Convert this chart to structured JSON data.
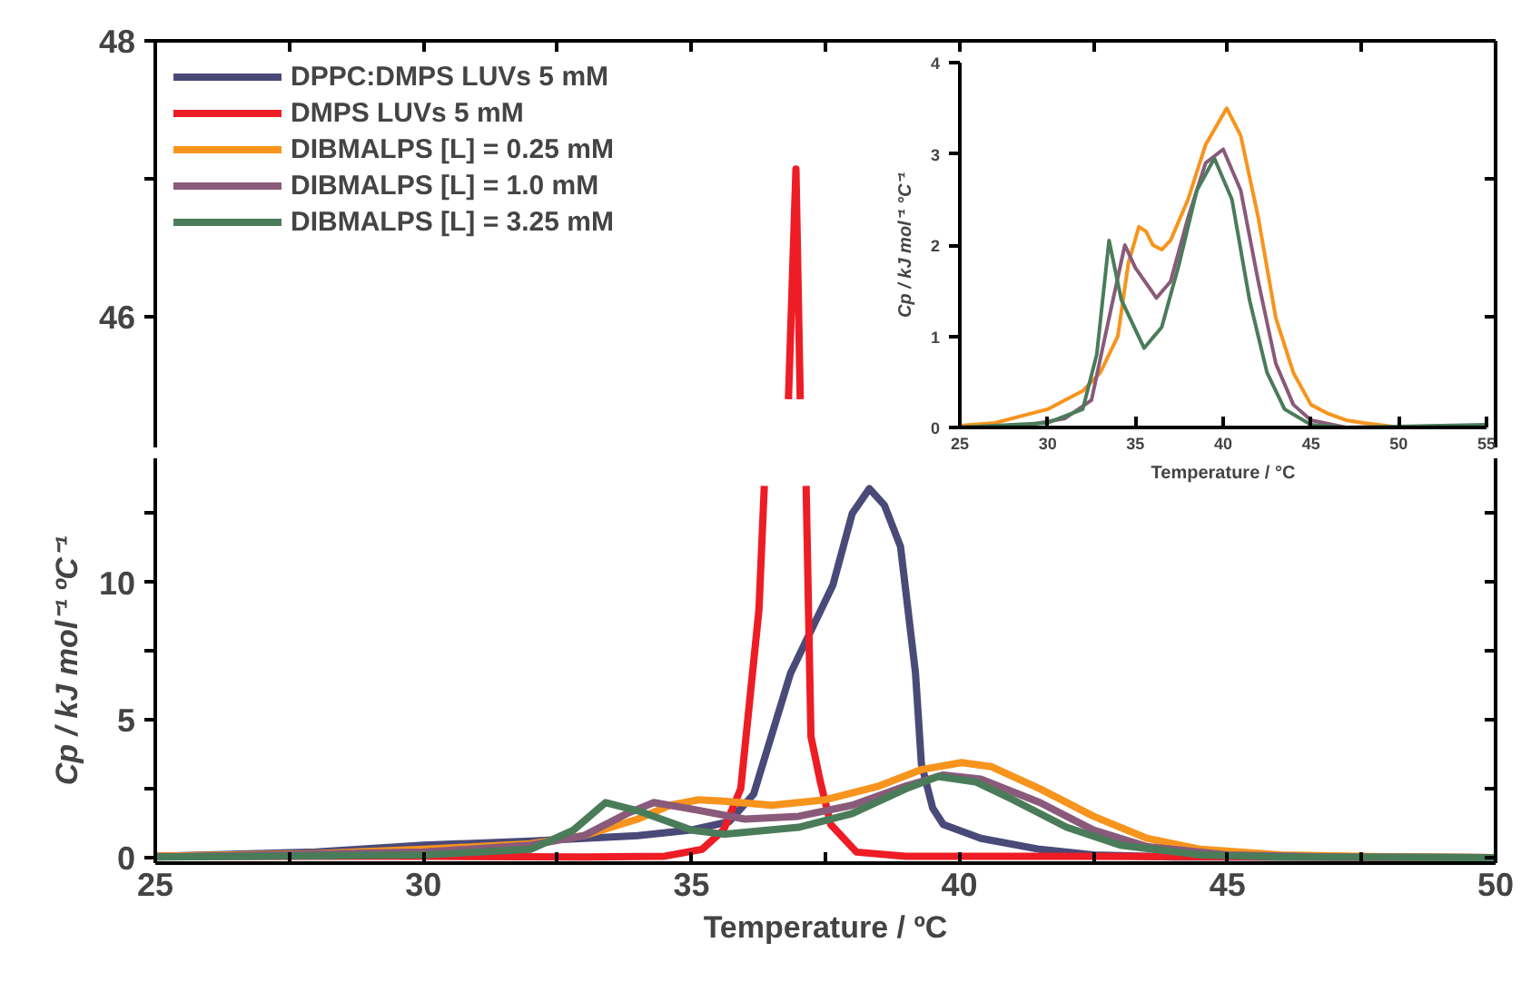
{
  "chart_data": [
    {
      "type": "line",
      "xlim": [
        25,
        50
      ],
      "xticks": [
        25,
        {
          "value": 27.5,
          "label": null
        },
        30,
        {
          "value": 32.5,
          "label": null
        },
        35,
        {
          "value": 37.5,
          "label": null
        },
        40,
        {
          "value": 42.5,
          "label": null
        },
        45,
        {
          "value": 47.5,
          "label": null
        },
        50
      ],
      "ylim": [
        45.05,
        48
      ],
      "yticks": [
        46,
        {
          "value": 47,
          "label": null
        },
        48
      ],
      "tick_labels": "y",
      "series": [
        {
          "color": "#ee1c25",
          "x": [
            36.81,
            36.95,
            37.03
          ],
          "values": [
            45.4,
            47.07,
            45.4
          ]
        }
      ]
    },
    {
      "type": "line",
      "xlabel": "Temperature / ºC",
      "ylabel": "Cp / kJ mol⁻¹ ºC⁻¹",
      "xlim": [
        25,
        50
      ],
      "xticks": [
        25,
        {
          "value": 27.5,
          "label": null
        },
        30,
        {
          "value": 32.5,
          "label": null
        },
        35,
        {
          "value": 37.5,
          "label": null
        },
        40,
        {
          "value": 42.5,
          "label": null
        },
        45,
        {
          "value": 47.5,
          "label": null
        },
        50
      ],
      "ylim": [
        -0.2,
        14.5
      ],
      "yticks": [
        0,
        {
          "value": 2.5,
          "label": null
        },
        5,
        {
          "value": 7.5,
          "label": null
        },
        10,
        {
          "value": 12.5,
          "label": null
        }
      ],
      "legend": "top left",
      "series": [
        {
          "name": "DPPC:DMPS LUVs 5 mM",
          "color": "#4a4a78",
          "x": [
            25,
            28,
            30,
            32,
            34,
            35,
            35.7,
            36.16,
            36.85,
            37.64,
            38.0,
            38.32,
            38.6,
            38.9,
            39.18,
            39.29,
            39.5,
            39.7,
            40.4,
            41.5,
            42.5,
            44,
            50
          ],
          "values": [
            0.05,
            0.2,
            0.45,
            0.6,
            0.8,
            1.0,
            1.3,
            2.3,
            6.7,
            9.9,
            12.5,
            13.4,
            12.8,
            11.3,
            6.7,
            3.4,
            1.8,
            1.2,
            0.7,
            0.3,
            0.1,
            0.02,
            0
          ]
        },
        {
          "name": "DMPS LUVs 5 mM",
          "color": "#ee1c25",
          "x": [
            25,
            30,
            33,
            34.5,
            35.2,
            35.6,
            35.92,
            36.26,
            36.36,
            36.8,
            37.14,
            37.23,
            37.4,
            37.6,
            38.08,
            39,
            42,
            45,
            50
          ],
          "values": [
            0.05,
            0.05,
            0.02,
            0.05,
            0.3,
            1.0,
            2.5,
            9,
            13.5,
            null,
            13.5,
            4.4,
            2.8,
            1.2,
            0.2,
            0.05,
            0.05,
            0.03,
            0
          ]
        },
        {
          "name": "DIBMALPS [L] = 0.25 mM",
          "color": "#f7941d",
          "x": [
            25,
            28,
            30,
            32,
            33,
            34,
            34.6,
            35.13,
            35.6,
            36.5,
            37.5,
            38.5,
            39.3,
            40.04,
            40.6,
            41.5,
            42.5,
            43.5,
            44.5,
            46,
            48,
            50
          ],
          "values": [
            0.05,
            0.15,
            0.3,
            0.5,
            0.8,
            1.4,
            1.9,
            2.1,
            2.05,
            1.9,
            2.1,
            2.6,
            3.2,
            3.45,
            3.3,
            2.5,
            1.5,
            0.7,
            0.3,
            0.1,
            0.03,
            0
          ]
        },
        {
          "name": "DIBMALPS [L] = 1.0 mM",
          "color": "#8a5a7a",
          "x": [
            25,
            30,
            32,
            33,
            33.8,
            34.3,
            34.9,
            36.0,
            37,
            38,
            39,
            39.7,
            40.4,
            41.5,
            42.5,
            43.5,
            45,
            47,
            50
          ],
          "values": [
            0.02,
            0.2,
            0.45,
            0.8,
            1.6,
            2.0,
            1.8,
            1.4,
            1.5,
            1.9,
            2.6,
            3.0,
            2.85,
            2.0,
            1.0,
            0.4,
            0.1,
            0.02,
            0
          ]
        },
        {
          "name": "DIBMALPS [L] = 3.25 mM",
          "color": "#4a7c5a",
          "x": [
            25,
            30,
            32,
            32.8,
            33.4,
            34.0,
            35.0,
            35.6,
            37,
            38,
            39,
            39.6,
            40.3,
            41,
            42,
            43,
            44.5,
            46,
            50
          ],
          "values": [
            0.02,
            0.1,
            0.3,
            1.0,
            2.0,
            1.7,
            1.0,
            0.85,
            1.1,
            1.6,
            2.5,
            2.95,
            2.75,
            2.1,
            1.1,
            0.45,
            0.1,
            0.02,
            0
          ]
        }
      ]
    },
    {
      "type": "line",
      "xlabel": "Temperature / °C",
      "ylabel": "Cp / kJ mol⁻¹ °C⁻¹",
      "xlim": [
        25,
        55
      ],
      "xticks": [
        25,
        30,
        35,
        40,
        45,
        50,
        55
      ],
      "ylim": [
        0,
        4
      ],
      "yticks": [
        0,
        1,
        2,
        3,
        4
      ],
      "series": [
        {
          "color": "#f7941d",
          "x": [
            25,
            27,
            29,
            30,
            31,
            32,
            33,
            34,
            34.6,
            35.2,
            35.6,
            36,
            36.5,
            37,
            38,
            39,
            40.2,
            41,
            42,
            43,
            44,
            45,
            46,
            47,
            48,
            50
          ],
          "values": [
            0.02,
            0.05,
            0.15,
            0.2,
            0.3,
            0.4,
            0.6,
            1.0,
            1.8,
            2.2,
            2.15,
            2.0,
            1.95,
            2.05,
            2.5,
            3.1,
            3.5,
            3.2,
            2.3,
            1.2,
            0.6,
            0.25,
            0.15,
            0.08,
            0.05,
            0.0
          ]
        },
        {
          "color": "#8a5a7a",
          "x": [
            25,
            29,
            31,
            32.5,
            33.5,
            34.4,
            35,
            36.2,
            37,
            38,
            39,
            40,
            41,
            42,
            43,
            44,
            45,
            47,
            55
          ],
          "values": [
            0.0,
            0.03,
            0.1,
            0.3,
            1.2,
            2.0,
            1.75,
            1.42,
            1.6,
            2.3,
            2.9,
            3.05,
            2.6,
            1.6,
            0.7,
            0.25,
            0.08,
            0.0,
            0.02
          ]
        },
        {
          "color": "#4a7c5a",
          "x": [
            25,
            30,
            32,
            32.8,
            33.5,
            34.2,
            35.5,
            36.5,
            37.5,
            38.5,
            39.5,
            40.5,
            41.5,
            42.5,
            43.5,
            45,
            47,
            55
          ],
          "values": [
            0.0,
            0.05,
            0.2,
            0.8,
            2.05,
            1.4,
            0.87,
            1.1,
            1.8,
            2.6,
            2.95,
            2.5,
            1.4,
            0.6,
            0.2,
            0.03,
            0.0,
            0.03
          ]
        }
      ]
    }
  ]
}
